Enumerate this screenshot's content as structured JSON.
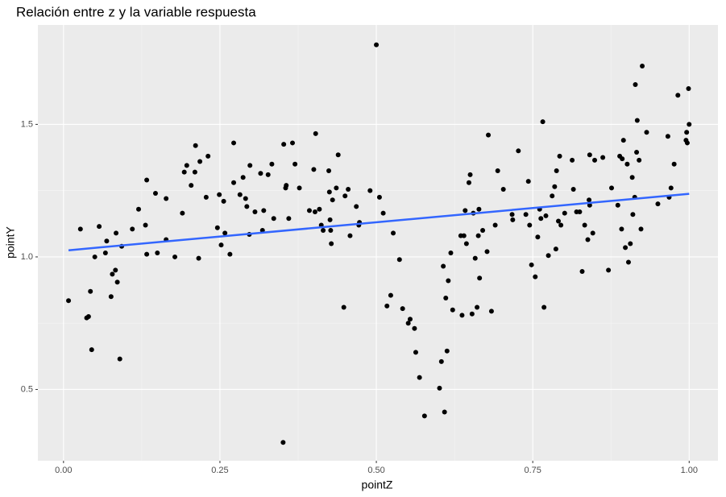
{
  "chart_data": {
    "type": "scatter",
    "title": "Relación entre z y la variable respuesta",
    "x_label": "pointZ",
    "y_label": "pointY",
    "color": "#000000",
    "xlim": [
      -0.041,
      1.046
    ],
    "ylim": [
      0.231,
      1.875
    ],
    "xticks": [
      {
        "value": 0,
        "label": "0.00"
      },
      {
        "value": 0.25,
        "label": "0.25"
      },
      {
        "value": 0.5,
        "label": "0.50"
      },
      {
        "value": 0.75,
        "label": "0.75"
      },
      {
        "value": 1,
        "label": "1.00"
      }
    ],
    "yticks": [
      0.5,
      {
        "value": 1,
        "label": "1.0"
      },
      1.5
    ],
    "grid": true,
    "x": [
      0.008,
      0.027,
      0.037,
      0.04,
      0.043,
      0.045,
      0.05,
      0.057,
      0.067,
      0.069,
      0.076,
      0.078,
      0.083,
      0.084,
      0.086,
      0.09,
      0.093,
      0.11,
      0.12,
      0.131,
      0.133,
      0.133,
      0.147,
      0.15,
      0.164,
      0.164,
      0.178,
      0.19,
      0.193,
      0.197,
      0.204,
      0.21,
      0.211,
      0.216,
      0.218,
      0.228,
      0.231,
      0.246,
      0.249,
      0.252,
      0.256,
      0.258,
      0.266,
      0.272,
      0.272,
      0.282,
      0.287,
      0.291,
      0.293,
      0.297,
      0.298,
      0.306,
      0.315,
      0.318,
      0.32,
      0.327,
      0.333,
      0.336,
      0.351,
      0.352,
      0.355,
      0.356,
      0.36,
      0.366,
      0.37,
      0.377,
      0.393,
      0.4,
      0.402,
      0.403,
      0.409,
      0.412,
      0.415,
      0.424,
      0.425,
      0.426,
      0.427,
      0.428,
      0.43,
      0.436,
      0.439,
      0.448,
      0.45,
      0.455,
      0.458,
      0.468,
      0.472,
      0.473,
      0.49,
      0.5,
      0.505,
      0.511,
      0.517,
      0.523,
      0.527,
      0.537,
      0.542,
      0.551,
      0.554,
      0.561,
      0.563,
      0.569,
      0.577,
      0.601,
      0.604,
      0.607,
      0.609,
      0.611,
      0.613,
      0.615,
      0.619,
      0.622,
      0.635,
      0.637,
      0.64,
      0.642,
      0.644,
      0.648,
      0.65,
      0.653,
      0.655,
      0.658,
      0.661,
      0.663,
      0.664,
      0.665,
      0.67,
      0.677,
      0.679,
      0.684,
      0.69,
      0.694,
      0.703,
      0.717,
      0.718,
      0.727,
      0.739,
      0.743,
      0.745,
      0.748,
      0.754,
      0.758,
      0.761,
      0.763,
      0.766,
      0.768,
      0.771,
      0.775,
      0.781,
      0.785,
      0.787,
      0.788,
      0.791,
      0.793,
      0.795,
      0.801,
      0.813,
      0.815,
      0.82,
      0.825,
      0.829,
      0.833,
      0.838,
      0.84,
      0.841,
      0.841,
      0.846,
      0.849,
      0.862,
      0.871,
      0.876,
      0.886,
      0.889,
      0.893,
      0.892,
      0.895,
      0.898,
      0.901,
      0.903,
      0.906,
      0.909,
      0.91,
      0.913,
      0.914,
      0.916,
      0.917,
      0.92,
      0.923,
      0.925,
      0.932,
      0.95,
      0.966,
      0.968,
      0.971,
      0.976,
      0.982,
      0.995,
      0.996,
      0.997,
      0.999,
      1.0
    ],
    "values": [
      0.835,
      1.105,
      0.77,
      0.775,
      0.87,
      0.65,
      1.0,
      1.115,
      1.015,
      1.06,
      0.85,
      0.935,
      0.95,
      1.09,
      0.905,
      0.615,
      1.04,
      1.105,
      1.18,
      1.12,
      1.29,
      1.01,
      1.24,
      1.015,
      1.22,
      1.065,
      1.0,
      1.165,
      1.32,
      1.345,
      1.27,
      1.32,
      1.42,
      0.995,
      1.36,
      1.225,
      1.38,
      1.11,
      1.235,
      1.045,
      1.21,
      1.09,
      1.01,
      1.43,
      1.28,
      1.235,
      1.3,
      1.22,
      1.19,
      1.085,
      1.345,
      1.17,
      1.315,
      1.1,
      1.175,
      1.31,
      1.35,
      1.145,
      0.3,
      1.425,
      1.26,
      1.27,
      1.145,
      1.43,
      1.35,
      1.26,
      1.175,
      1.33,
      1.17,
      1.465,
      1.18,
      1.12,
      1.1,
      1.325,
      1.245,
      1.14,
      1.1,
      1.05,
      1.215,
      1.26,
      1.385,
      0.81,
      1.23,
      1.255,
      1.08,
      1.19,
      1.12,
      1.13,
      1.25,
      1.8,
      1.225,
      1.165,
      0.815,
      0.855,
      1.09,
      0.99,
      0.805,
      0.75,
      0.765,
      0.73,
      0.64,
      0.545,
      0.4,
      0.505,
      0.605,
      0.965,
      0.415,
      0.845,
      0.645,
      0.91,
      1.015,
      0.8,
      1.08,
      0.78,
      1.08,
      1.175,
      1.05,
      1.28,
      1.31,
      0.785,
      1.165,
      0.995,
      0.81,
      1.08,
      1.18,
      0.92,
      1.1,
      1.02,
      1.46,
      0.795,
      1.12,
      1.325,
      1.255,
      1.16,
      1.14,
      1.4,
      1.16,
      1.285,
      1.12,
      0.97,
      0.925,
      1.075,
      1.18,
      1.145,
      1.51,
      0.81,
      1.155,
      1.005,
      1.23,
      1.265,
      1.03,
      1.325,
      1.135,
      1.38,
      1.12,
      1.165,
      1.365,
      1.255,
      1.17,
      1.17,
      0.945,
      1.12,
      1.065,
      1.215,
      1.385,
      1.195,
      1.09,
      1.365,
      1.375,
      0.95,
      1.26,
      1.195,
      1.38,
      1.37,
      1.105,
      1.44,
      1.035,
      1.35,
      0.98,
      1.05,
      1.3,
      1.16,
      1.225,
      1.65,
      1.395,
      1.515,
      1.365,
      1.105,
      1.72,
      1.47,
      1.2,
      1.455,
      1.225,
      1.26,
      1.35,
      1.61,
      1.44,
      1.47,
      1.43,
      1.635,
      1.5
    ],
    "trend": {
      "color": "#3366FF",
      "x": [
        0.008,
        1.0
      ],
      "values": [
        1.025,
        1.238
      ]
    }
  }
}
